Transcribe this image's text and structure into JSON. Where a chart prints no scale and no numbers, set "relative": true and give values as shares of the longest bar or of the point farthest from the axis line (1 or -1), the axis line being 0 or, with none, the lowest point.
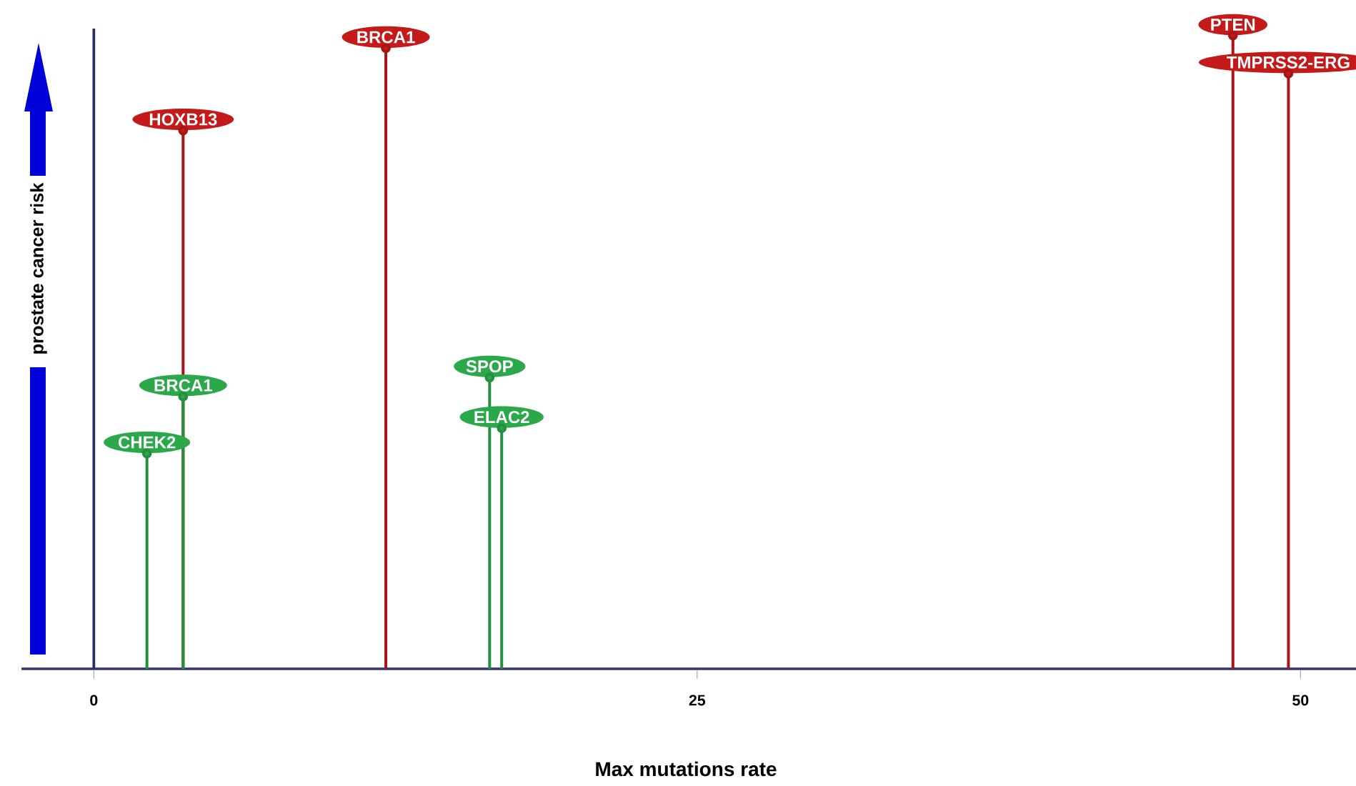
{
  "chart_data": {
    "type": "lollipop",
    "relative": true,
    "ylabel": "prostate cancer risk",
    "xlabel": "Max  mutations rate",
    "xlim": [
      -3,
      52.3
    ],
    "xticks": [
      0,
      25,
      50
    ],
    "ref_lines": [
      {
        "axis": "x",
        "value": 0,
        "color": "#2b2b70"
      }
    ],
    "grid": false,
    "marker": "circle",
    "series": [
      {
        "color": "#c41a1a",
        "x": [
          3.7,
          12.1,
          47.2,
          49.5
        ],
        "values": [
          0.85,
          0.98,
          1,
          0.94
        ]
      },
      {
        "color": "#2aa84a",
        "x": [
          2.2,
          3.7,
          16.4,
          16.9
        ],
        "values": [
          0.34,
          0.43,
          0.46,
          0.38
        ]
      }
    ],
    "annotations": [
      {
        "text": "HOXB13",
        "x": 3.7,
        "y": 0.85
      },
      {
        "text": "BRCA1",
        "x": 12.1,
        "y": 0.98
      },
      {
        "text": "PTEN",
        "x": 47.2,
        "y": 1
      },
      {
        "text": "TMPRSS2-ERG",
        "x": 49.5,
        "y": 0.94
      },
      {
        "text": "CHEK2",
        "x": 2.2,
        "y": 0.34
      },
      {
        "text": "BRCA1",
        "x": 3.7,
        "y": 0.43
      },
      {
        "text": "SPOP",
        "x": 16.4,
        "y": 0.46
      },
      {
        "text": "ELAC2",
        "x": 16.9,
        "y": 0.38
      }
    ]
  }
}
